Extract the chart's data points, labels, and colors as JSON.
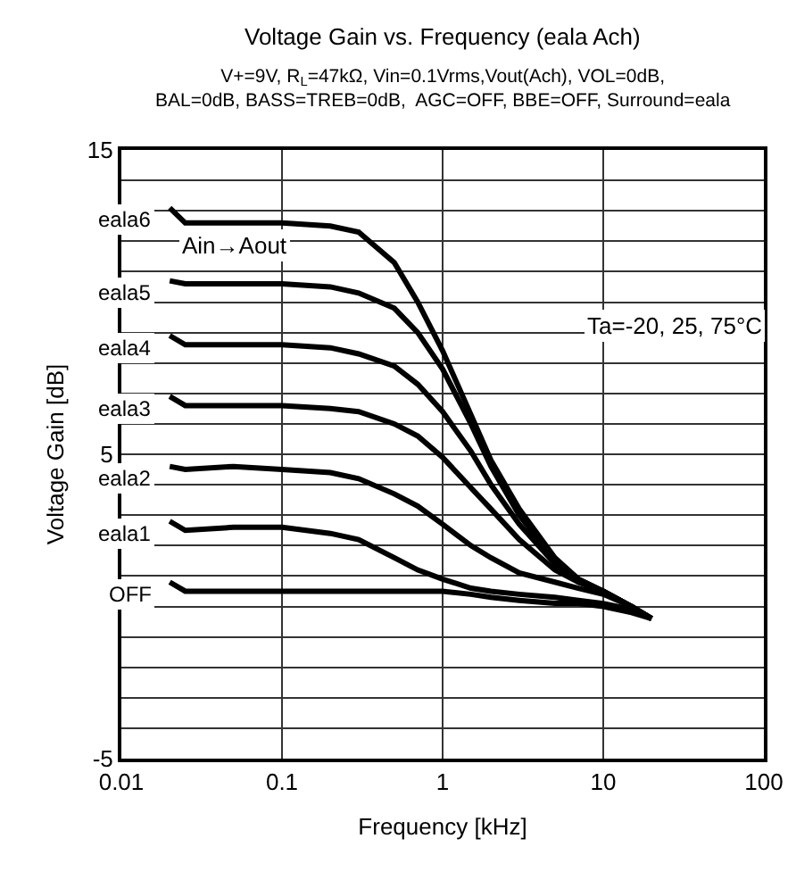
{
  "chart_data": {
    "type": "line",
    "title": "Voltage Gain vs. Frequency (eala Ach)",
    "subtitle": "V+=9V, R$_{L}$=47kΩ, Vin=0.1Vrms,Vout(Ach), VOL=0dB,\nBAL=0dB, BASS=TREB=0dB,  AGC=OFF, BBE=OFF, Surround=eala",
    "xlabel": "Frequency [kHz]",
    "ylabel": "Voltage Gain [dB]",
    "annotations": [
      "Ain→Aout",
      "Ta=-20, 25, 75°C"
    ],
    "x": [
      0.02,
      0.025,
      0.05,
      0.1,
      0.2,
      0.3,
      0.5,
      0.7,
      1,
      1.5,
      2,
      3,
      5,
      7,
      10,
      15,
      20
    ],
    "series": [
      {
        "name": "eala6",
        "color": "#000000",
        "values": [
          13.1,
          12.6,
          12.6,
          12.6,
          12.5,
          12.3,
          11.3,
          10.0,
          8.4,
          6.3,
          4.8,
          3.2,
          1.6,
          0.9,
          0.5,
          0.0,
          -0.4
        ]
      },
      {
        "name": "eala5",
        "color": "#000000",
        "values": [
          10.7,
          10.6,
          10.6,
          10.6,
          10.5,
          10.3,
          9.8,
          9.0,
          7.8,
          6.0,
          4.6,
          3.0,
          1.5,
          0.9,
          0.5,
          0.0,
          -0.4
        ]
      },
      {
        "name": "eala4",
        "color": "#000000",
        "values": [
          8.9,
          8.6,
          8.6,
          8.6,
          8.5,
          8.3,
          7.9,
          7.3,
          6.4,
          5.1,
          4.0,
          2.7,
          1.4,
          0.8,
          0.5,
          0.0,
          -0.4
        ]
      },
      {
        "name": "eala3",
        "color": "#000000",
        "values": [
          6.9,
          6.6,
          6.6,
          6.6,
          6.5,
          6.4,
          6.0,
          5.6,
          4.9,
          3.9,
          3.2,
          2.2,
          1.2,
          0.8,
          0.5,
          0.0,
          -0.4
        ]
      },
      {
        "name": "eala2",
        "color": "#000000",
        "values": [
          4.6,
          4.5,
          4.6,
          4.5,
          4.4,
          4.2,
          3.7,
          3.3,
          2.7,
          2.0,
          1.6,
          1.1,
          0.8,
          0.6,
          0.4,
          0.0,
          -0.4
        ]
      },
      {
        "name": "eala1",
        "color": "#000000",
        "values": [
          2.8,
          2.5,
          2.6,
          2.6,
          2.4,
          2.2,
          1.6,
          1.2,
          0.9,
          0.6,
          0.5,
          0.4,
          0.3,
          0.2,
          0.1,
          -0.1,
          -0.4
        ]
      },
      {
        "name": "OFF",
        "color": "#000000",
        "values": [
          0.8,
          0.5,
          0.5,
          0.5,
          0.5,
          0.5,
          0.5,
          0.5,
          0.5,
          0.4,
          0.3,
          0.2,
          0.1,
          0.1,
          0.0,
          -0.2,
          -0.4
        ]
      }
    ],
    "xlim": [
      0.01,
      100
    ],
    "xticks": [
      0.01,
      0.1,
      1,
      10,
      100
    ],
    "ylim": [
      -5,
      15
    ],
    "yticks": [
      -5,
      {
        "value": -4,
        "label": null
      },
      {
        "value": -3,
        "label": null
      },
      {
        "value": -2,
        "label": null
      },
      {
        "value": -1,
        "label": null
      },
      {
        "value": 0,
        "label": null
      },
      {
        "value": 1,
        "label": null
      },
      {
        "value": 2,
        "label": null
      },
      {
        "value": 3,
        "label": null
      },
      {
        "value": 4,
        "label": null
      },
      5,
      {
        "value": 6,
        "label": null
      },
      {
        "value": 7,
        "label": null
      },
      {
        "value": 8,
        "label": null
      },
      {
        "value": 9,
        "label": null
      },
      {
        "value": 10,
        "label": null
      },
      {
        "value": 11,
        "label": null
      },
      {
        "value": 12,
        "label": null
      },
      {
        "value": 13,
        "label": null
      },
      {
        "value": 14,
        "label": null
      },
      15
    ],
    "log": "x",
    "grid": true,
    "legend": false,
    "marker": "none",
    "line_style": "solid"
  }
}
